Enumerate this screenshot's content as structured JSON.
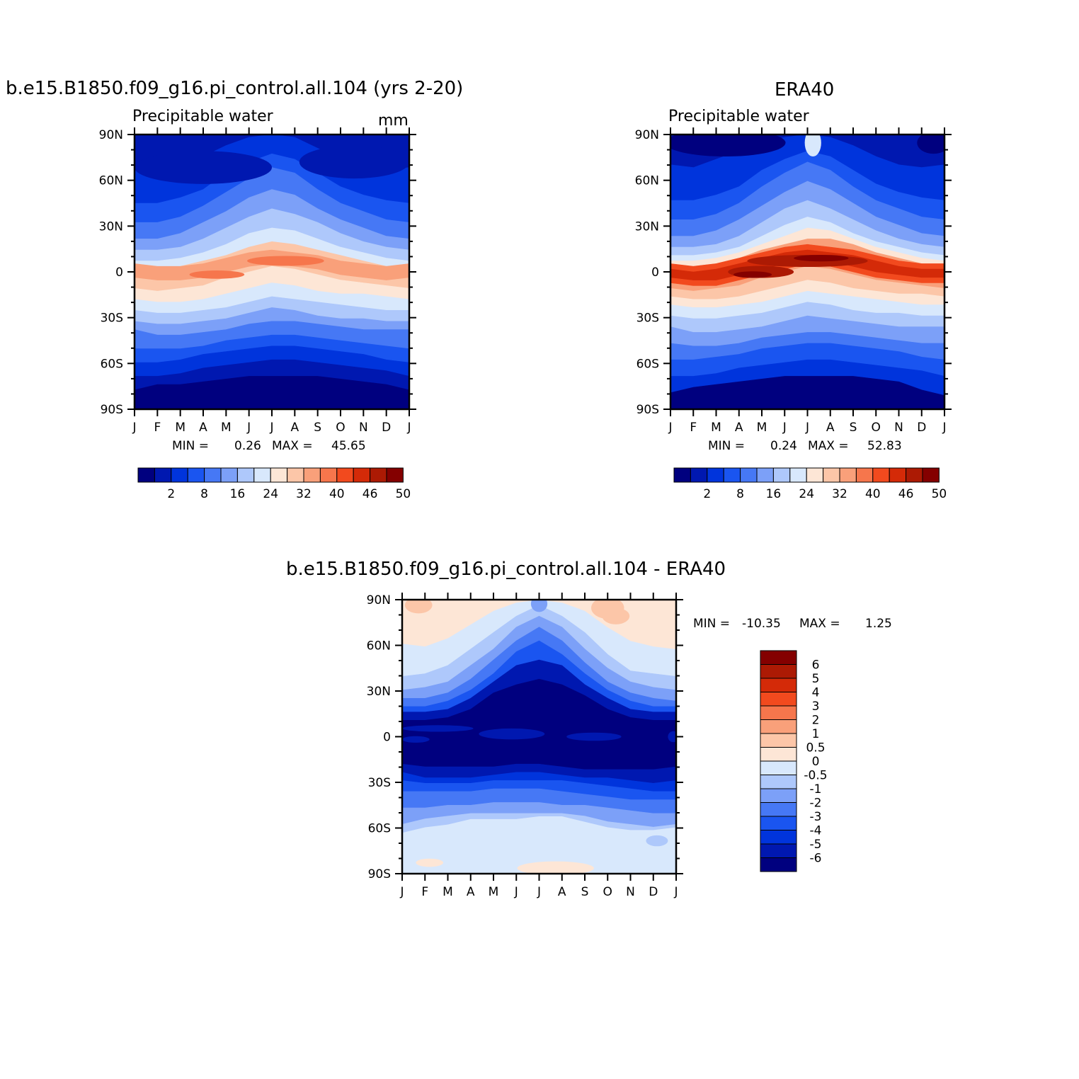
{
  "panels": {
    "model": {
      "title": "b.e15.B1850.f09_g16.pi_control.all.104 (yrs 2-20)",
      "left_string": "Precipitable water",
      "right_string": "mm",
      "min_label": "MIN =",
      "min_value": "0.26",
      "max_label": "MAX =",
      "max_value": "45.65"
    },
    "obs": {
      "title": "ERA40",
      "left_string": "Precipitable water",
      "right_string": "",
      "min_label": "MIN =",
      "min_value": "0.24",
      "max_label": "MAX =",
      "max_value": "52.83"
    },
    "diff": {
      "title": "b.e15.B1850.f09_g16.pi_control.all.104 - ERA40",
      "min_label": "MIN =",
      "min_value": "-10.35",
      "max_label": "MAX =",
      "max_value": "1.25"
    }
  },
  "axes": {
    "months": [
      "J",
      "F",
      "M",
      "A",
      "M",
      "J",
      "J",
      "A",
      "S",
      "O",
      "N",
      "D",
      "J"
    ],
    "latitudes": [
      "90N",
      "60N",
      "30N",
      "0",
      "30S",
      "60S",
      "90S"
    ]
  },
  "colorbars": {
    "abs_labels": [
      "2",
      "8",
      "16",
      "24",
      "32",
      "40",
      "46",
      "50"
    ],
    "abs_colors": [
      "#00007f",
      "#0018b0",
      "#0034dc",
      "#1a55f0",
      "#4678f5",
      "#7ca0f8",
      "#aec8fb",
      "#d8e8fc",
      "#fde6d6",
      "#fcc6a8",
      "#f9a07a",
      "#f6764c",
      "#f24a1e",
      "#d42a08",
      "#ac1a04",
      "#840000"
    ],
    "diff_labels": [
      "6",
      "5",
      "4",
      "3",
      "2",
      "1",
      "0.5",
      "0",
      "-0.5",
      "-1",
      "-2",
      "-3",
      "-4",
      "-5",
      "-6"
    ],
    "diff_colors": [
      "#840000",
      "#ac1a04",
      "#d42a08",
      "#f24a1e",
      "#f6764c",
      "#f9a07a",
      "#fcc6a8",
      "#fde6d6",
      "#d8e8fc",
      "#aec8fb",
      "#7ca0f8",
      "#4678f5",
      "#1a55f0",
      "#0034dc",
      "#0018b0",
      "#00007f"
    ]
  },
  "chart_data": [
    {
      "type": "heatmap",
      "title": "b.e15.B1850.f09_g16.pi_control.all.104 (yrs 2-20)",
      "variable": "Precipitable water",
      "units": "mm",
      "x": [
        "J",
        "F",
        "M",
        "A",
        "M",
        "J",
        "J",
        "A",
        "S",
        "O",
        "N",
        "D",
        "J"
      ],
      "y": [
        "90N",
        "60N",
        "30N",
        "0",
        "30S",
        "60S",
        "90S"
      ],
      "levels": [
        2,
        5,
        8,
        12,
        16,
        20,
        24,
        28,
        32,
        36,
        40,
        43,
        46,
        48,
        50
      ],
      "min": 0.26,
      "max": 45.65
    },
    {
      "type": "heatmap",
      "title": "ERA40",
      "variable": "Precipitable water",
      "x": [
        "J",
        "F",
        "M",
        "A",
        "M",
        "J",
        "J",
        "A",
        "S",
        "O",
        "N",
        "D",
        "J"
      ],
      "y": [
        "90N",
        "60N",
        "30N",
        "0",
        "30S",
        "60S",
        "90S"
      ],
      "levels": [
        2,
        5,
        8,
        12,
        16,
        20,
        24,
        28,
        32,
        36,
        40,
        43,
        46,
        48,
        50
      ],
      "min": 0.24,
      "max": 52.83
    },
    {
      "type": "heatmap",
      "title": "b.e15.B1850.f09_g16.pi_control.all.104 - ERA40",
      "x": [
        "J",
        "F",
        "M",
        "A",
        "M",
        "J",
        "J",
        "A",
        "S",
        "O",
        "N",
        "D",
        "J"
      ],
      "y": [
        "90N",
        "60N",
        "30N",
        "0",
        "30S",
        "60S",
        "90S"
      ],
      "levels": [
        -6,
        -5,
        -4,
        -3,
        -2,
        -1,
        -0.5,
        0,
        0.5,
        1,
        2,
        3,
        4,
        5,
        6
      ],
      "min": -10.35,
      "max": 1.25
    }
  ]
}
